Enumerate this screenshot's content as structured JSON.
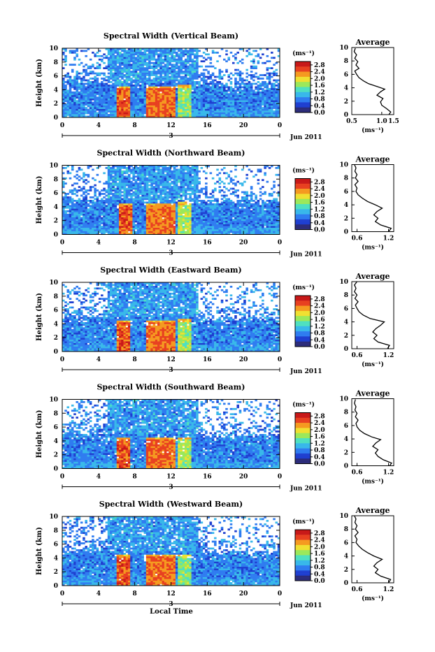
{
  "figure": {
    "xlabel": "Local Time",
    "colorbar_unit": "(ms⁻¹)",
    "colorbar_ticks": [
      "2.8",
      "2.4",
      "2.0",
      "1.6",
      "1.2",
      "0.8",
      "0.4",
      "0.0"
    ],
    "date_label": "Jun 2011",
    "day_label": "3",
    "avg_title": "Average",
    "avg_unit": "(ms⁻¹)",
    "colormap": [
      "#2b2b7a",
      "#1f3fd0",
      "#2f7cf0",
      "#38b8ea",
      "#4ee0c0",
      "#9be85a",
      "#f0e030",
      "#f59a20",
      "#e84020",
      "#c81818"
    ]
  },
  "chart_data": [
    {
      "type": "heatmap",
      "title": "Spectral Width (Vertical Beam)",
      "ylabel": "Height (km)",
      "xlim": [
        0,
        24
      ],
      "ylim": [
        0,
        10
      ],
      "xticks": [
        "0",
        "4",
        "8",
        "12",
        "16",
        "20",
        "0"
      ],
      "yticks": [
        "0",
        "2",
        "4",
        "6",
        "8",
        "10"
      ],
      "clim": [
        0.0,
        3.0
      ],
      "high_width_blocks": [
        {
          "t_start": 6.0,
          "t_end": 7.6,
          "h_top": 4.6,
          "value": 2.7
        },
        {
          "t_start": 9.3,
          "t_end": 12.4,
          "h_top": 4.6,
          "value": 2.6
        },
        {
          "t_start": 12.8,
          "t_end": 14.2,
          "h_top": 4.7,
          "value": 1.8
        }
      ],
      "profile": {
        "title": "Average",
        "xlabel": "(ms⁻¹)",
        "xlim": [
          0.5,
          1.2
        ],
        "xticks": [
          "0.5",
          "1.0",
          "1.5"
        ],
        "ylim": [
          0,
          10
        ],
        "yticks": [
          "0",
          "2",
          "4",
          "6",
          "8",
          "10"
        ],
        "points": [
          [
            1.12,
            0.0
          ],
          [
            1.15,
            0.4
          ],
          [
            1.08,
            0.9
          ],
          [
            1.0,
            1.4
          ],
          [
            0.98,
            1.9
          ],
          [
            1.02,
            2.4
          ],
          [
            0.92,
            2.9
          ],
          [
            0.98,
            3.4
          ],
          [
            1.05,
            3.8
          ],
          [
            0.92,
            4.2
          ],
          [
            0.78,
            4.6
          ],
          [
            0.7,
            5.0
          ],
          [
            0.62,
            5.5
          ],
          [
            0.58,
            6.0
          ],
          [
            0.55,
            6.5
          ],
          [
            0.62,
            6.9
          ],
          [
            0.57,
            7.4
          ],
          [
            0.6,
            7.9
          ],
          [
            0.55,
            8.4
          ],
          [
            0.58,
            8.9
          ],
          [
            0.54,
            9.4
          ],
          [
            0.56,
            9.9
          ]
        ]
      }
    },
    {
      "type": "heatmap",
      "title": "Spectral Width (Northward Beam)",
      "ylabel": "Height (km)",
      "xlim": [
        0,
        24
      ],
      "ylim": [
        0,
        10
      ],
      "xticks": [
        "0",
        "4",
        "8",
        "12",
        "16",
        "20",
        "0"
      ],
      "yticks": [
        "0",
        "2",
        "4",
        "6",
        "8",
        "10"
      ],
      "clim": [
        0.0,
        3.0
      ],
      "high_width_blocks": [
        {
          "t_start": 6.2,
          "t_end": 7.7,
          "h_top": 4.6,
          "value": 2.7
        },
        {
          "t_start": 9.3,
          "t_end": 12.5,
          "h_top": 4.6,
          "value": 2.6
        },
        {
          "t_start": 12.8,
          "t_end": 14.3,
          "h_top": 4.7,
          "value": 1.9
        }
      ],
      "profile": {
        "title": "Average",
        "xlabel": "(ms⁻¹)",
        "xlim": [
          0.5,
          1.3
        ],
        "xticks": [
          "0.6",
          "1.2"
        ],
        "ylim": [
          0,
          10
        ],
        "yticks": [
          "0",
          "2",
          "4",
          "6",
          "8",
          "10"
        ],
        "points": [
          [
            1.2,
            0.0
          ],
          [
            1.25,
            0.5
          ],
          [
            1.05,
            1.0
          ],
          [
            0.95,
            1.5
          ],
          [
            1.0,
            2.0
          ],
          [
            0.92,
            2.5
          ],
          [
            0.98,
            3.0
          ],
          [
            1.08,
            3.5
          ],
          [
            0.95,
            4.0
          ],
          [
            0.8,
            4.5
          ],
          [
            0.7,
            5.0
          ],
          [
            0.62,
            5.5
          ],
          [
            0.58,
            6.0
          ],
          [
            0.6,
            6.5
          ],
          [
            0.56,
            7.0
          ],
          [
            0.62,
            7.5
          ],
          [
            0.57,
            8.0
          ],
          [
            0.6,
            8.5
          ],
          [
            0.56,
            9.0
          ],
          [
            0.58,
            9.5
          ],
          [
            0.55,
            10.0
          ]
        ]
      }
    },
    {
      "type": "heatmap",
      "title": "Spectral Width (Eastward Beam)",
      "ylabel": "Height (km)",
      "xlim": [
        0,
        24
      ],
      "ylim": [
        0,
        10
      ],
      "xticks": [
        "0",
        "4",
        "8",
        "12",
        "16",
        "20",
        "0"
      ],
      "yticks": [
        "0",
        "2",
        "4",
        "6",
        "8",
        "10"
      ],
      "clim": [
        0.0,
        3.0
      ],
      "high_width_blocks": [
        {
          "t_start": 6.1,
          "t_end": 7.6,
          "h_top": 4.6,
          "value": 2.7
        },
        {
          "t_start": 9.2,
          "t_end": 12.4,
          "h_top": 4.6,
          "value": 2.6
        },
        {
          "t_start": 12.8,
          "t_end": 14.2,
          "h_top": 4.7,
          "value": 1.9
        }
      ],
      "profile": {
        "title": "Average",
        "xlabel": "(ms⁻¹)",
        "xlim": [
          0.5,
          1.3
        ],
        "xticks": [
          "0.6",
          "1.2"
        ],
        "ylim": [
          0,
          10
        ],
        "yticks": [
          "0",
          "2",
          "4",
          "6",
          "8",
          "10"
        ],
        "points": [
          [
            1.18,
            0.0
          ],
          [
            1.22,
            0.5
          ],
          [
            1.0,
            1.0
          ],
          [
            0.92,
            1.5
          ],
          [
            0.98,
            2.0
          ],
          [
            0.9,
            2.5
          ],
          [
            0.96,
            3.0
          ],
          [
            1.05,
            3.5
          ],
          [
            1.12,
            4.0
          ],
          [
            0.85,
            4.5
          ],
          [
            0.72,
            5.0
          ],
          [
            0.64,
            5.5
          ],
          [
            0.6,
            6.0
          ],
          [
            0.57,
            6.5
          ],
          [
            0.62,
            7.0
          ],
          [
            0.56,
            7.5
          ],
          [
            0.6,
            8.0
          ],
          [
            0.55,
            8.5
          ],
          [
            0.58,
            9.0
          ],
          [
            0.55,
            9.5
          ],
          [
            0.6,
            10.0
          ]
        ]
      }
    },
    {
      "type": "heatmap",
      "title": "Spectral Width (Southward Beam)",
      "ylabel": "Height (km)",
      "xlim": [
        0,
        24
      ],
      "ylim": [
        0,
        10
      ],
      "xticks": [
        "0",
        "4",
        "8",
        "12",
        "16",
        "20",
        "0"
      ],
      "yticks": [
        "0",
        "2",
        "4",
        "6",
        "8",
        "10"
      ],
      "clim": [
        0.0,
        3.0
      ],
      "high_width_blocks": [
        {
          "t_start": 6.0,
          "t_end": 7.6,
          "h_top": 4.5,
          "value": 2.7
        },
        {
          "t_start": 9.2,
          "t_end": 12.4,
          "h_top": 4.6,
          "value": 2.6
        },
        {
          "t_start": 12.8,
          "t_end": 14.3,
          "h_top": 4.6,
          "value": 1.9
        }
      ],
      "profile": {
        "title": "Average",
        "xlabel": "(ms⁻¹)",
        "xlim": [
          0.5,
          1.3
        ],
        "xticks": [
          "0.6",
          "1.2"
        ],
        "ylim": [
          0,
          10
        ],
        "yticks": [
          "0",
          "2",
          "4",
          "6",
          "8",
          "10"
        ],
        "points": [
          [
            1.22,
            0.0
          ],
          [
            1.26,
            0.4
          ],
          [
            1.1,
            0.9
          ],
          [
            1.0,
            1.4
          ],
          [
            0.95,
            1.9
          ],
          [
            1.0,
            2.4
          ],
          [
            0.9,
            2.9
          ],
          [
            0.96,
            3.4
          ],
          [
            1.05,
            3.9
          ],
          [
            0.88,
            4.3
          ],
          [
            0.74,
            4.8
          ],
          [
            0.65,
            5.3
          ],
          [
            0.6,
            5.8
          ],
          [
            0.58,
            6.3
          ],
          [
            0.62,
            6.8
          ],
          [
            0.57,
            7.3
          ],
          [
            0.6,
            7.8
          ],
          [
            0.56,
            8.3
          ],
          [
            0.58,
            8.8
          ],
          [
            0.55,
            9.3
          ],
          [
            0.57,
            9.9
          ]
        ]
      }
    },
    {
      "type": "heatmap",
      "title": "Spectral Width (Westward Beam)",
      "ylabel": "Height (km)",
      "xlabel": "Local Time",
      "xlim": [
        0,
        24
      ],
      "ylim": [
        0,
        10
      ],
      "xticks": [
        "0",
        "4",
        "8",
        "12",
        "16",
        "20",
        "0"
      ],
      "yticks": [
        "0",
        "2",
        "4",
        "6",
        "8",
        "10"
      ],
      "clim": [
        0.0,
        3.0
      ],
      "high_width_blocks": [
        {
          "t_start": 6.1,
          "t_end": 7.6,
          "h_top": 4.6,
          "value": 2.7
        },
        {
          "t_start": 9.3,
          "t_end": 12.4,
          "h_top": 4.6,
          "value": 2.6
        },
        {
          "t_start": 12.8,
          "t_end": 14.2,
          "h_top": 4.6,
          "value": 1.8
        }
      ],
      "profile": {
        "title": "Average",
        "xlabel": "(ms⁻¹)",
        "xlim": [
          0.5,
          1.3
        ],
        "xticks": [
          "0.6",
          "1.2"
        ],
        "ylim": [
          0,
          10
        ],
        "yticks": [
          "0",
          "2",
          "4",
          "6",
          "8",
          "10"
        ],
        "points": [
          [
            1.2,
            0.0
          ],
          [
            1.24,
            0.5
          ],
          [
            1.05,
            1.0
          ],
          [
            0.95,
            1.5
          ],
          [
            1.0,
            2.0
          ],
          [
            0.92,
            2.5
          ],
          [
            0.98,
            3.0
          ],
          [
            1.08,
            3.5
          ],
          [
            0.92,
            4.0
          ],
          [
            0.8,
            4.5
          ],
          [
            0.7,
            5.0
          ],
          [
            0.63,
            5.5
          ],
          [
            0.58,
            6.0
          ],
          [
            0.6,
            6.5
          ],
          [
            0.56,
            7.0
          ],
          [
            0.62,
            7.5
          ],
          [
            0.57,
            8.0
          ],
          [
            0.6,
            8.5
          ],
          [
            0.56,
            9.0
          ],
          [
            0.58,
            9.5
          ],
          [
            0.55,
            10.0
          ]
        ]
      }
    }
  ]
}
